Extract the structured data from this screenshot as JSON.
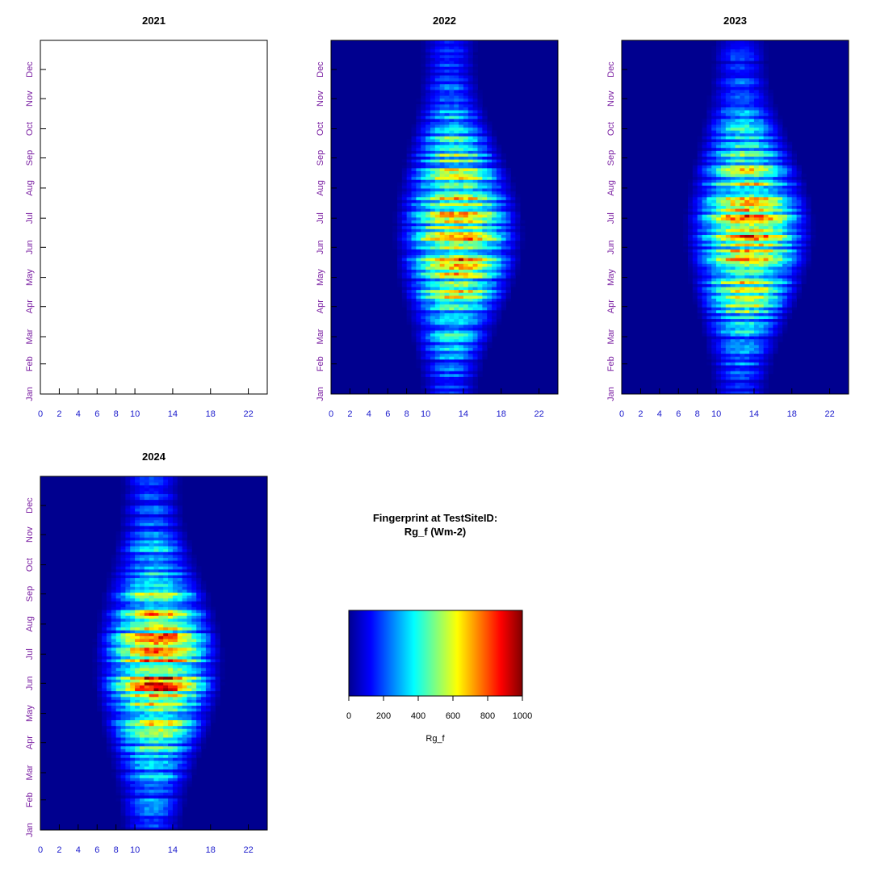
{
  "chart_data": [
    {
      "type": "heatmap",
      "title": "2021",
      "xticks": [
        0,
        2,
        4,
        6,
        8,
        10,
        14,
        18,
        22
      ],
      "yticks": [
        "Jan",
        "Feb",
        "Mar",
        "Apr",
        "May",
        "Jun",
        "Jul",
        "Aug",
        "Sep",
        "Oct",
        "Nov",
        "Dec"
      ],
      "xlim": [
        0,
        24
      ],
      "ylim": [
        1,
        365
      ],
      "has_data": false
    },
    {
      "type": "heatmap",
      "title": "2022",
      "xticks": [
        0,
        2,
        4,
        6,
        8,
        10,
        14,
        18,
        22
      ],
      "yticks": [
        "Jan",
        "Feb",
        "Mar",
        "Apr",
        "May",
        "Jun",
        "Jul",
        "Aug",
        "Sep",
        "Oct",
        "Nov",
        "Dec"
      ],
      "xlim": [
        0,
        24
      ],
      "ylim": [
        1,
        365
      ],
      "has_data": true,
      "peak_value": 900,
      "peak_day": 166,
      "daylight_start_winter": 9.5,
      "daylight_end_winter": 15.5,
      "daylight_start_summer": 6.5,
      "daylight_end_summer": 20.5
    },
    {
      "type": "heatmap",
      "title": "2023",
      "xticks": [
        0,
        2,
        4,
        6,
        8,
        10,
        14,
        18,
        22
      ],
      "yticks": [
        "Jan",
        "Feb",
        "Mar",
        "Apr",
        "May",
        "Jun",
        "Jul",
        "Aug",
        "Sep",
        "Oct",
        "Nov",
        "Dec"
      ],
      "xlim": [
        0,
        24
      ],
      "ylim": [
        1,
        365
      ],
      "has_data": true,
      "peak_value": 870,
      "peak_day": 170,
      "daylight_start_winter": 9.5,
      "daylight_end_winter": 15.5,
      "daylight_start_summer": 6.5,
      "daylight_end_summer": 20.5
    },
    {
      "type": "heatmap",
      "title": "2024",
      "xticks": [
        0,
        2,
        4,
        6,
        8,
        10,
        14,
        18,
        22
      ],
      "yticks": [
        "Jan",
        "Feb",
        "Mar",
        "Apr",
        "May",
        "Jun",
        "Jul",
        "Aug",
        "Sep",
        "Oct",
        "Nov",
        "Dec"
      ],
      "xlim": [
        0,
        24
      ],
      "ylim": [
        1,
        365
      ],
      "has_data": true,
      "peak_value": 950,
      "peak_day": 172,
      "daylight_start_winter": 8.5,
      "daylight_end_winter": 15,
      "daylight_start_summer": 5.5,
      "daylight_end_summer": 19.5
    }
  ],
  "legend": {
    "heading_line1": "Fingerprint at TestSiteID:",
    "heading_line2": "Rg_f (Wm-2)",
    "colorbar_ticks": [
      0,
      200,
      400,
      600,
      800,
      1000
    ],
    "colorbar_label": "Rg_f",
    "colorbar_range": [
      0,
      1000
    ],
    "colormap": [
      "#00008f",
      "#0000ff",
      "#00ffff",
      "#ffff00",
      "#ff0000",
      "#800000"
    ]
  }
}
